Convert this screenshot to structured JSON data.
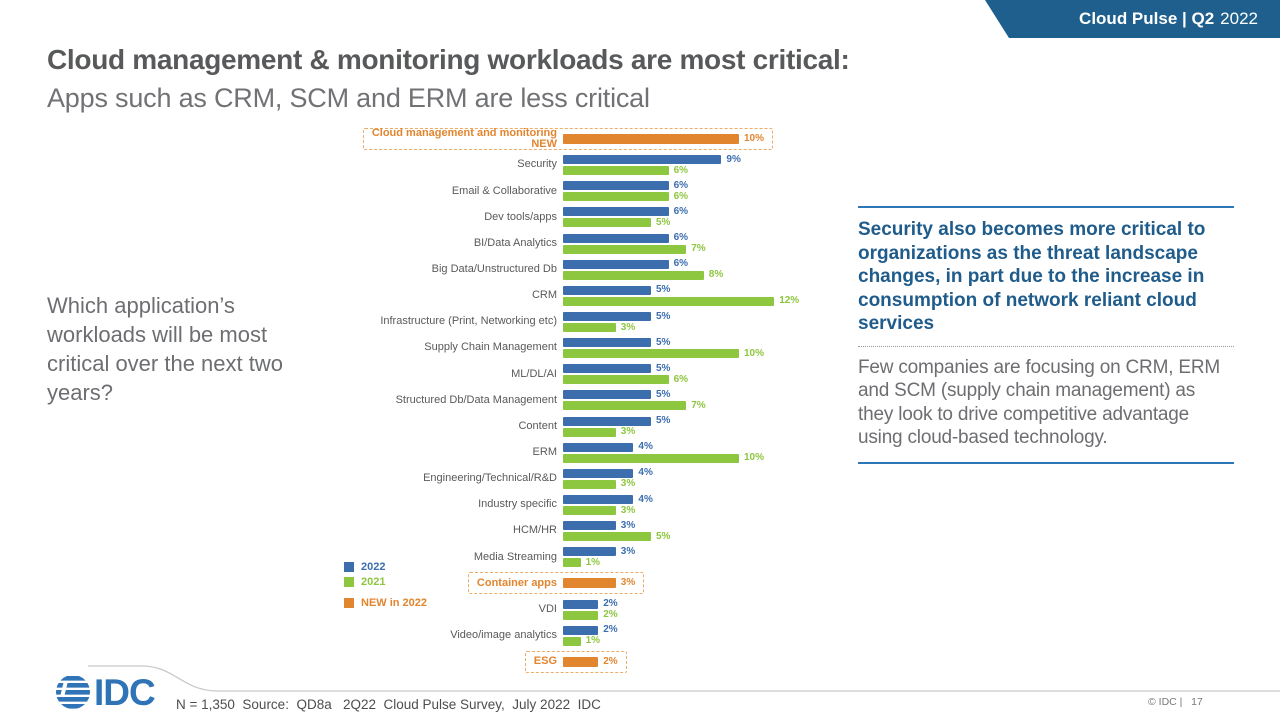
{
  "ribbon": {
    "title_strong": "Cloud Pulse | Q2",
    "title_year": "2022",
    "bg_color": "#1E5F8E"
  },
  "header": {
    "title": "Cloud management & monitoring workloads are most critical:",
    "subtitle": "Apps such as CRM, SCM and ERM are less critical"
  },
  "question": "Which application’s workloads will be most critical over the next two years?",
  "chart_data": {
    "type": "bar",
    "orientation": "horizontal",
    "unit": "%",
    "xlim": [
      0,
      12
    ],
    "grid": false,
    "data_labels": true,
    "legend_position": "bottom-left",
    "categories": [
      "Cloud management and monitoring NEW",
      "Security",
      "Email & Collaborative",
      "Dev tools/apps",
      "BI/Data Analytics",
      "Big Data/Unstructured Db",
      "CRM",
      "Infrastructure (Print, Networking etc)",
      "Supply Chain Management",
      "ML/DL/AI",
      "Structured Db/Data Management",
      "Content",
      "ERM",
      "Engineering/Technical/R&D",
      "Industry specific",
      "HCM/HR",
      "Media Streaming",
      "Container apps",
      "VDI",
      "Video/image analytics",
      "ESG"
    ],
    "series": [
      {
        "name": "2022",
        "color": "#3C6EAE",
        "values": [
          null,
          9,
          6,
          6,
          6,
          6,
          5,
          5,
          5,
          5,
          5,
          5,
          4,
          4,
          4,
          3,
          3,
          null,
          2,
          2,
          null
        ]
      },
      {
        "name": "2021",
        "color": "#8DC63F",
        "values": [
          null,
          6,
          6,
          5,
          7,
          8,
          12,
          3,
          10,
          6,
          7,
          3,
          10,
          3,
          3,
          5,
          1,
          null,
          2,
          1,
          null
        ]
      },
      {
        "name": "NEW in 2022",
        "color": "#E2852F",
        "values": [
          10,
          null,
          null,
          null,
          null,
          null,
          null,
          null,
          null,
          null,
          null,
          null,
          null,
          null,
          null,
          null,
          null,
          3,
          null,
          null,
          2
        ]
      }
    ],
    "new_row_indices": [
      0,
      17,
      20
    ],
    "legend": [
      {
        "label": "2022",
        "color": "#3C6EAE"
      },
      {
        "label": "2021",
        "color": "#8DC63F"
      },
      {
        "label": "NEW in 2022",
        "color": "#E2852F",
        "gap_before": true
      }
    ]
  },
  "insight": {
    "headline": "Security also becomes more critical to organizations as the threat landscape changes, in part due to the increase in consumption of network reliant cloud services",
    "body": "Few companies are focusing on CRM, ERM and SCM (supply chain management) as they look to drive competitive advantage using cloud-based technology."
  },
  "footer": {
    "source_note": "N = 1,350  Source:  QD8a   2Q22  Cloud Pulse Survey,  July 2022  IDC",
    "copyright": "© IDC |   17",
    "logo_text": "IDC"
  }
}
